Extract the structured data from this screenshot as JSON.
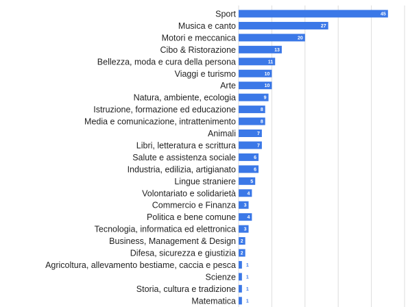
{
  "chart_data": {
    "type": "bar",
    "orientation": "horizontal",
    "categories": [
      "Sport",
      "Musica e canto",
      "Motori e meccanica",
      "Cibo & Ristorazione",
      "Bellezza, moda e cura della persona",
      "Viaggi e turismo",
      "Arte",
      "Natura, ambiente, ecologia",
      "Istruzione, formazione ed educazione",
      "Media e comunicazione, intrattenimento",
      "Animali",
      "Libri, letteratura e scrittura",
      "Salute e assistenza sociale",
      "Industria, edilizia, artigianato",
      "Lingue straniere",
      "Volontariato e solidarietà",
      "Commercio e Finanza",
      "Politica e bene comune",
      "Tecnologia, informatica ed elettronica",
      "Business, Management & Design",
      "Difesa, sicurezza e giustizia",
      "Agricoltura, allevamento bestiame, caccia e pesca",
      "Scienze",
      "Storia, cultura e tradizione",
      "Matematica"
    ],
    "values": [
      45,
      27,
      20,
      13,
      11,
      10,
      10,
      9,
      8,
      8,
      7,
      7,
      6,
      6,
      5,
      4,
      3,
      4,
      3,
      2,
      2,
      1,
      1,
      1,
      1
    ],
    "title": "",
    "xlabel": "",
    "ylabel": "",
    "xlim": [
      0,
      50
    ],
    "grid": true,
    "bar_color": "#3b78e7",
    "label_color_inside": "#ffffff",
    "label_color_outside": "#3b78e7"
  }
}
